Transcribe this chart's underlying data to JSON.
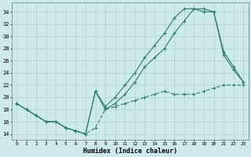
{
  "xlabel": "Humidex (Indice chaleur)",
  "bg_color": "#cdeaea",
  "line_color": "#2d7a6a",
  "grid_color": "#afd0d0",
  "xlim": [
    -0.5,
    23.5
  ],
  "ylim": [
    13.0,
    35.5
  ],
  "yticks": [
    14,
    16,
    18,
    20,
    22,
    24,
    26,
    28,
    30,
    32,
    34
  ],
  "xticks": [
    0,
    1,
    2,
    3,
    4,
    5,
    6,
    7,
    8,
    9,
    10,
    11,
    12,
    13,
    14,
    15,
    16,
    17,
    18,
    19,
    20,
    21,
    22,
    23
  ],
  "line1_x": [
    0,
    1,
    2,
    3,
    4,
    5,
    6,
    7,
    8,
    9,
    10,
    11,
    12,
    13,
    14,
    15,
    16,
    17,
    18,
    19,
    20,
    21,
    22,
    23
  ],
  "line1_y": [
    19.0,
    18.0,
    17.0,
    16.0,
    16.0,
    15.0,
    14.5,
    14.0,
    21.0,
    18.0,
    19.0,
    20.5,
    22.5,
    25.0,
    26.5,
    28.0,
    30.5,
    32.5,
    34.5,
    34.5,
    34.0,
    27.0,
    24.5,
    22.5
  ],
  "line2_x": [
    0,
    1,
    2,
    3,
    4,
    5,
    6,
    7,
    8,
    9,
    10,
    11,
    12,
    13,
    14,
    15,
    16,
    17,
    18,
    19,
    20,
    21,
    22,
    23
  ],
  "line2_y": [
    19.0,
    18.0,
    17.0,
    16.0,
    16.0,
    15.0,
    14.5,
    14.0,
    21.0,
    18.5,
    20.0,
    22.0,
    24.0,
    26.5,
    28.5,
    30.5,
    33.0,
    34.5,
    34.5,
    34.0,
    34.0,
    27.5,
    25.0,
    22.5
  ],
  "line3_x": [
    0,
    1,
    2,
    3,
    4,
    5,
    6,
    7,
    8,
    9,
    10,
    11,
    12,
    13,
    14,
    15,
    16,
    17,
    18,
    19,
    20,
    21,
    22,
    23
  ],
  "line3_y": [
    19.0,
    18.0,
    17.0,
    16.0,
    16.0,
    15.0,
    14.5,
    14.0,
    15.0,
    18.0,
    18.5,
    19.0,
    19.5,
    20.0,
    20.5,
    21.0,
    20.5,
    20.5,
    20.5,
    21.0,
    21.5,
    22.0,
    22.0,
    22.0
  ]
}
